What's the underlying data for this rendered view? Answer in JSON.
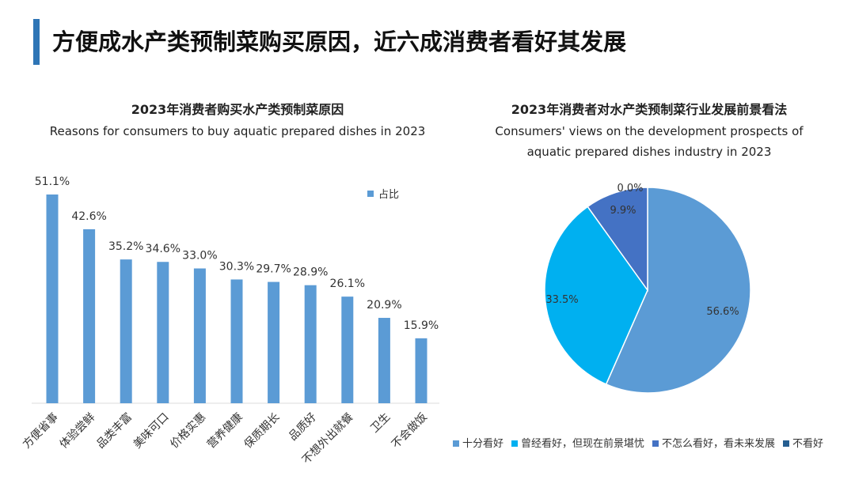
{
  "page_title": "方便成水产类预制菜购买原因，近六成消费者看好其发展",
  "chart_data": [
    {
      "type": "bar",
      "title": "2023年消费者购买水产类预制菜原因",
      "subtitle": "Reasons for consumers to buy aquatic prepared dishes in 2023",
      "categories": [
        "方便省事",
        "体验尝鲜",
        "品类丰富",
        "美味可口",
        "价格实惠",
        "营养健康",
        "保质期长",
        "品质好",
        "不想外出就餐",
        "卫生",
        "不会做饭"
      ],
      "series": [
        {
          "name": "占比",
          "values": [
            51.1,
            42.6,
            35.2,
            34.6,
            33.0,
            30.3,
            29.7,
            28.9,
            26.1,
            20.9,
            15.9
          ]
        }
      ],
      "data_labels": [
        "51.1%",
        "42.6%",
        "35.2%",
        "34.6%",
        "33.0%",
        "30.3%",
        "29.7%",
        "28.9%",
        "26.1%",
        "20.9%",
        "15.9%"
      ],
      "color": "#5b9bd5",
      "legend": "top-right",
      "ylim": [
        0,
        55
      ],
      "grid": false
    },
    {
      "type": "pie",
      "title": "2023年消费者对水产类预制菜行业发展前景看法",
      "subtitle_lines": [
        "Consumers' views on the development prospects of",
        "aquatic prepared dishes industry in 2023"
      ],
      "categories": [
        "十分看好",
        "曾经看好，但现在前景堪忧",
        "不怎么看好，看未来发展",
        "不看好"
      ],
      "values": [
        56.6,
        33.5,
        9.9,
        0.0
      ],
      "data_labels": [
        "56.6%",
        "33.5%",
        "9.9%",
        "0.0%"
      ],
      "colors": [
        "#5b9bd5",
        "#00b0f0",
        "#4472c4",
        "#255e91"
      ],
      "legend": "bottom"
    }
  ]
}
